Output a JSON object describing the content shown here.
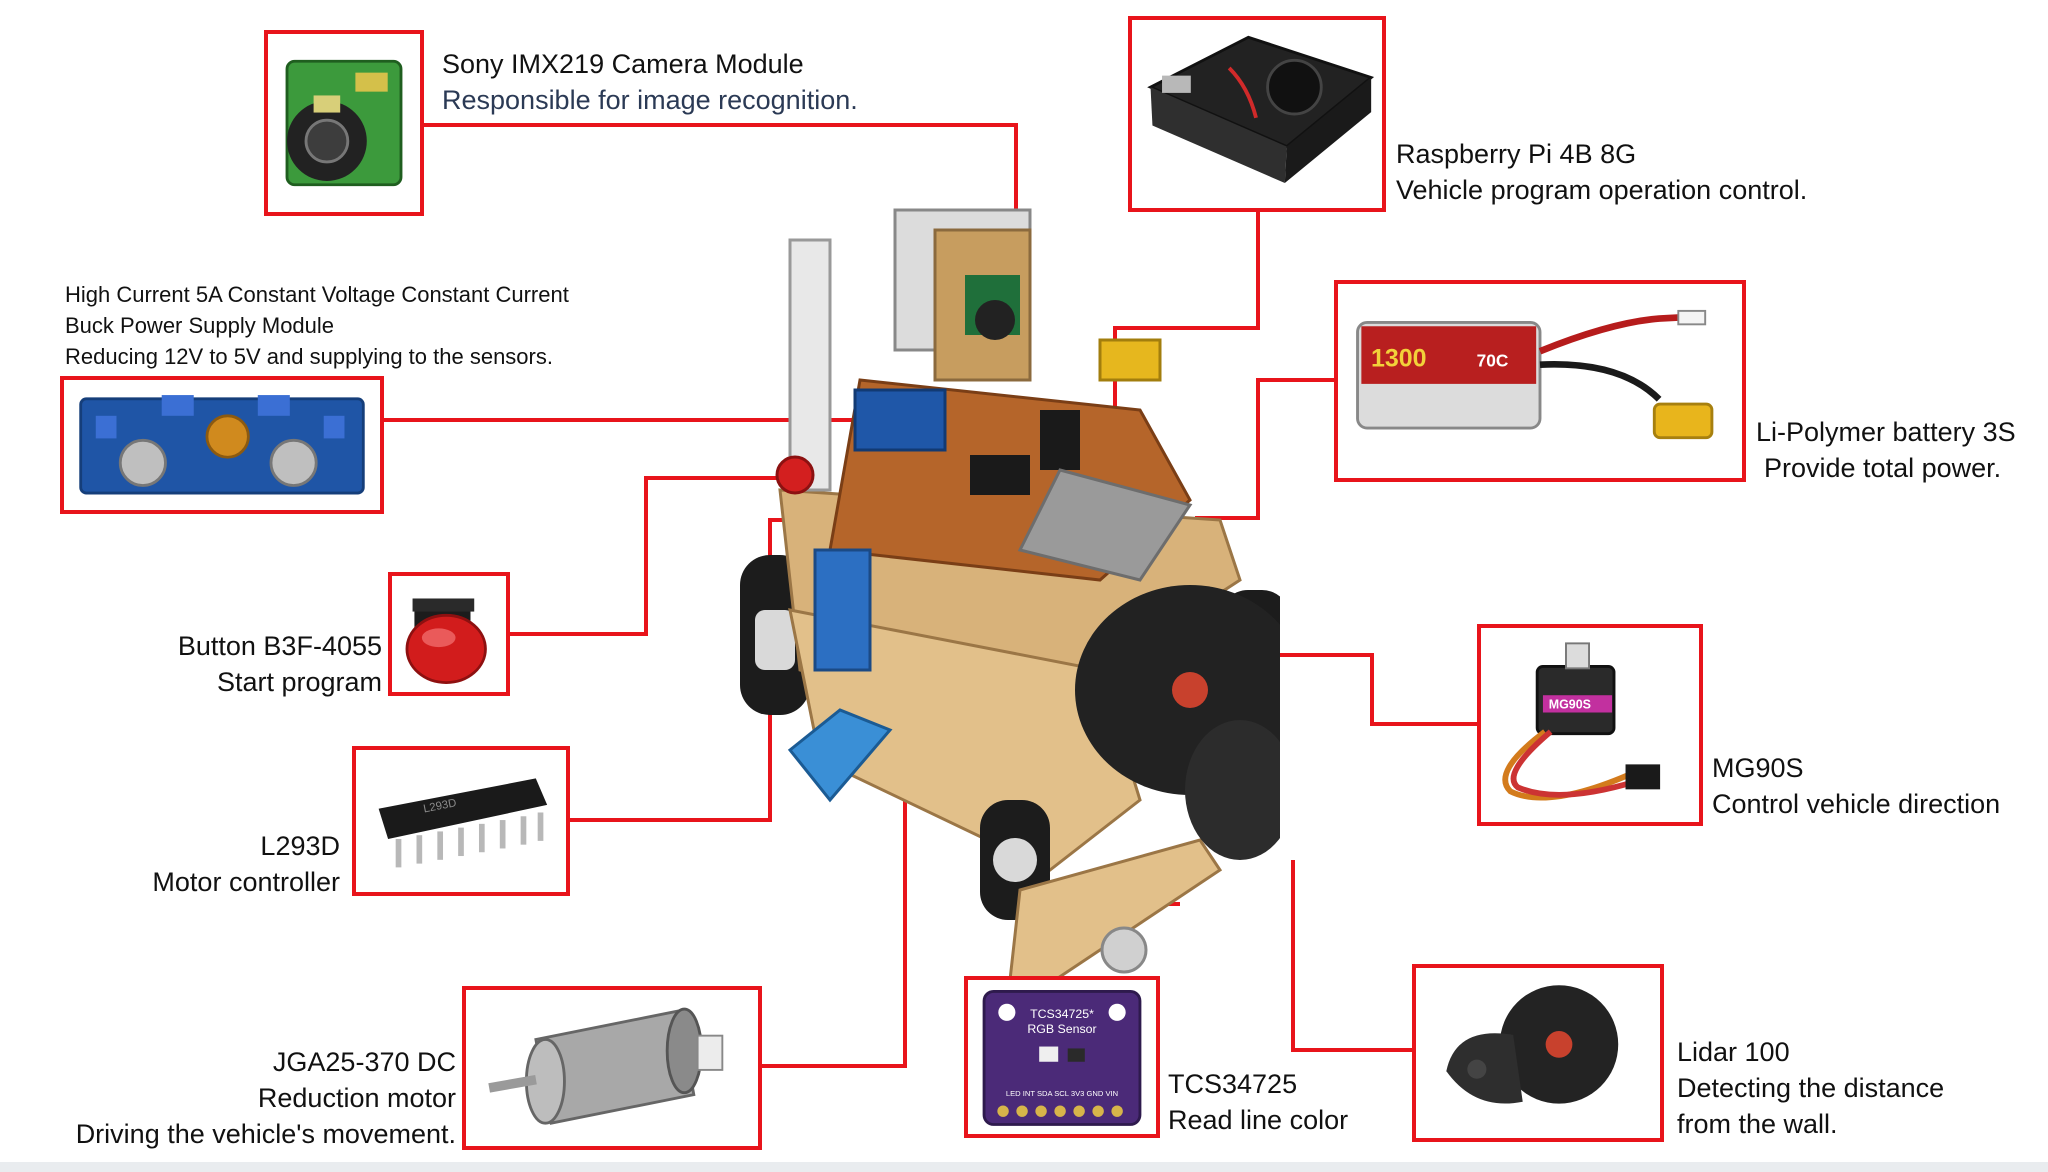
{
  "components": {
    "camera": {
      "title": "Sony IMX219 Camera Module",
      "desc": "Responsible for image recognition."
    },
    "raspberry": {
      "title": "Raspberry Pi 4B 8G",
      "desc": "Vehicle program operation control."
    },
    "buck": {
      "line1": "High Current 5A Constant Voltage Constant Current",
      "line2": "Buck Power Supply Module",
      "line3": "Reducing 12V to 5V and supplying to the sensors."
    },
    "battery": {
      "title": "Li-Polymer battery 3S",
      "desc": "Provide total power."
    },
    "button": {
      "title": "Button B3F-4055",
      "desc": "Start program"
    },
    "servo": {
      "title": "MG90S",
      "desc": "Control vehicle direction"
    },
    "l293d": {
      "title": "L293D",
      "desc": "Motor controller"
    },
    "motor": {
      "line1": "JGA25-370 DC",
      "line2": "Reduction motor",
      "line3": "Driving the vehicle's movement."
    },
    "color": {
      "title": "TCS34725",
      "desc": "Read line color"
    },
    "lidar": {
      "line1": "Lidar 100",
      "line2": "Detecting the distance",
      "line3": "from the wall."
    }
  },
  "product_text": {
    "battery_brand": "1300",
    "battery_rating": "70C",
    "servo_brand": "MG90S",
    "sensor_line1": "TCS34725*",
    "sensor_line2": "RGB Sensor",
    "sensor_pins": "LED INT SDA SCL 3V3 GND VIN"
  },
  "colors": {
    "frame": "#e8141b",
    "connector": "#e8141b",
    "text": "#111111",
    "desc_text": "#2b3a55"
  },
  "icons": [
    "camera-module",
    "raspberry-pi-case",
    "buck-module",
    "lipo-battery",
    "push-button",
    "servo",
    "dip-ic",
    "dc-motor",
    "rgb-sensor",
    "lidar-sensor",
    "robot-vehicle"
  ]
}
